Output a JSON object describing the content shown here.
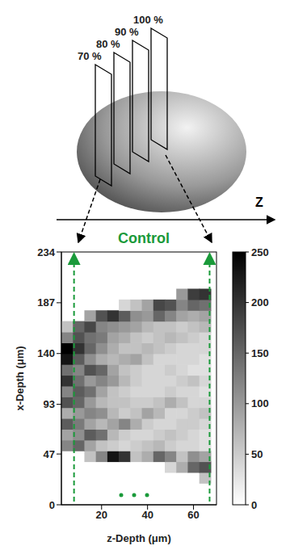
{
  "diagram": {
    "planes": [
      "70 %",
      "80 %",
      "90 %",
      "100 %"
    ],
    "axis_label": "Z"
  },
  "chart_data": {
    "type": "heatmap",
    "title": "Control",
    "xlabel": "z-Depth (μm)",
    "ylabel": "x-Depth (μm)",
    "x": [
      5,
      10,
      15,
      20,
      25,
      30,
      35,
      40,
      45,
      50,
      55,
      60,
      65
    ],
    "y": [
      5,
      15,
      25,
      35,
      45,
      55,
      65,
      75,
      85,
      95,
      105,
      115,
      125,
      135,
      145,
      155,
      165,
      175,
      185,
      195,
      205,
      215,
      225
    ],
    "cells": [
      [
        0,
        0,
        0,
        0,
        0,
        0,
        0,
        0,
        0,
        0,
        0,
        0,
        0
      ],
      [
        0,
        0,
        0,
        0,
        0,
        0,
        0,
        0,
        0,
        0,
        0,
        0,
        0
      ],
      [
        0,
        0,
        0,
        0,
        0,
        0,
        0,
        0,
        0,
        0,
        0,
        0,
        60
      ],
      [
        0,
        0,
        0,
        0,
        0,
        0,
        0,
        0,
        0,
        40,
        80,
        150,
        170
      ],
      [
        0,
        0,
        60,
        120,
        230,
        200,
        60,
        80,
        150,
        120,
        60,
        110,
        90
      ],
      [
        120,
        150,
        90,
        60,
        50,
        40,
        50,
        60,
        70,
        50,
        40,
        40,
        30
      ],
      [
        90,
        110,
        160,
        140,
        70,
        50,
        40,
        40,
        50,
        60,
        50,
        40,
        30
      ],
      [
        160,
        130,
        90,
        70,
        90,
        120,
        80,
        50,
        40,
        40,
        50,
        50,
        40
      ],
      [
        80,
        100,
        120,
        110,
        70,
        50,
        60,
        90,
        70,
        40,
        40,
        50,
        60
      ],
      [
        170,
        150,
        100,
        70,
        60,
        60,
        50,
        50,
        60,
        80,
        60,
        40,
        40
      ],
      [
        120,
        160,
        140,
        90,
        60,
        50,
        40,
        40,
        40,
        50,
        40,
        40,
        30
      ],
      [
        200,
        140,
        100,
        120,
        100,
        70,
        50,
        40,
        40,
        40,
        50,
        60,
        40
      ],
      [
        140,
        120,
        170,
        150,
        90,
        60,
        50,
        40,
        40,
        50,
        40,
        30,
        30
      ],
      [
        230,
        160,
        110,
        80,
        70,
        80,
        90,
        60,
        40,
        40,
        40,
        40,
        30
      ],
      [
        250,
        200,
        150,
        110,
        80,
        60,
        60,
        70,
        60,
        50,
        40,
        40,
        40
      ],
      [
        120,
        170,
        140,
        130,
        90,
        80,
        60,
        50,
        60,
        70,
        60,
        50,
        40
      ],
      [
        60,
        150,
        180,
        120,
        110,
        100,
        90,
        70,
        60,
        60,
        50,
        60,
        70
      ],
      [
        0,
        0,
        90,
        170,
        200,
        160,
        110,
        100,
        150,
        120,
        90,
        80,
        90
      ],
      [
        0,
        0,
        0,
        0,
        0,
        40,
        60,
        90,
        180,
        170,
        120,
        150,
        140
      ],
      [
        0,
        0,
        0,
        0,
        0,
        0,
        0,
        0,
        0,
        0,
        100,
        190,
        200
      ],
      [
        0,
        0,
        0,
        0,
        0,
        0,
        0,
        0,
        0,
        0,
        0,
        0,
        0
      ],
      [
        0,
        0,
        0,
        0,
        0,
        0,
        0,
        0,
        0,
        0,
        0,
        0,
        0
      ],
      [
        0,
        0,
        0,
        0,
        0,
        0,
        0,
        0,
        0,
        0,
        0,
        0,
        0
      ]
    ],
    "xlim": [
      2.5,
      70
    ],
    "xticks": [
      20,
      40,
      60
    ],
    "ylim": [
      0,
      234
    ],
    "yticks": [
      0,
      47,
      93,
      140,
      187,
      234
    ],
    "colorbar_range": [
      0,
      250
    ],
    "colorbar_ticks": [
      0,
      50,
      100,
      150,
      200,
      250
    ]
  }
}
